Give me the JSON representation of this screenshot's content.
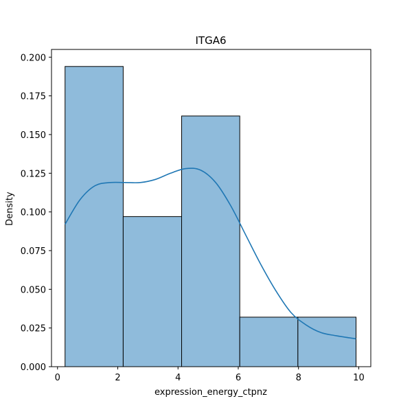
{
  "chart_data": {
    "type": "bar",
    "title": "ITGA6",
    "xlabel": "expression_energy_ctpnz",
    "ylabel": "Density",
    "xlim": [
      -0.2,
      10.4
    ],
    "ylim": [
      0,
      0.205
    ],
    "xticks": [
      "0",
      "2",
      "4",
      "6",
      "8",
      "10"
    ],
    "yticks": [
      "0.000",
      "0.025",
      "0.050",
      "0.075",
      "0.100",
      "0.125",
      "0.150",
      "0.175",
      "0.200"
    ],
    "grid": false,
    "bins": [
      {
        "x0": 0.25,
        "x1": 2.18,
        "density": 0.194
      },
      {
        "x0": 2.18,
        "x1": 4.12,
        "density": 0.097
      },
      {
        "x0": 4.12,
        "x1": 6.05,
        "density": 0.162
      },
      {
        "x0": 6.05,
        "x1": 7.98,
        "density": 0.032
      },
      {
        "x0": 7.98,
        "x1": 9.91,
        "density": 0.032
      }
    ],
    "kde": {
      "x": [
        0.25,
        0.75,
        1.25,
        1.75,
        2.25,
        2.75,
        3.25,
        3.75,
        4.25,
        4.75,
        5.25,
        5.75,
        6.25,
        6.75,
        7.25,
        7.75,
        8.25,
        8.75,
        9.25,
        9.91
      ],
      "y": [
        0.092,
        0.108,
        0.117,
        0.119,
        0.119,
        0.119,
        0.121,
        0.125,
        0.128,
        0.127,
        0.119,
        0.104,
        0.085,
        0.066,
        0.049,
        0.035,
        0.027,
        0.022,
        0.02,
        0.018
      ]
    },
    "colors": {
      "bar_fill": "#8fbbdb",
      "bar_edge": "#000000",
      "kde_line": "#1f77b4"
    }
  }
}
